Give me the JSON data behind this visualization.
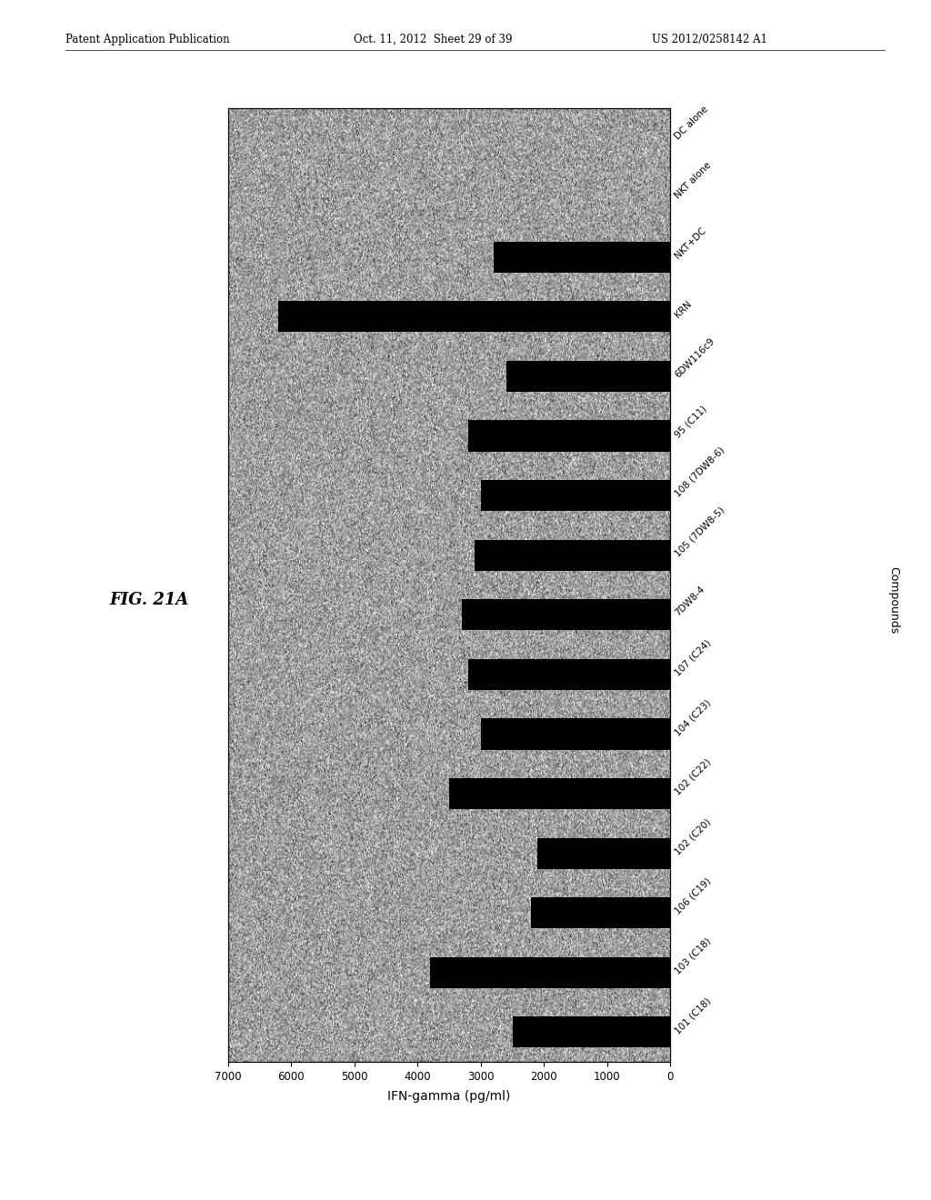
{
  "categories": [
    "DC alone",
    "NKT alone",
    "NKT+DC",
    "KRN",
    "6DW116c9",
    "95 (C11)",
    "108 (7DW8-6)",
    "105 (7DW8-5)",
    "7DW8-4",
    "107 (C24)",
    "104 (C23)",
    "102 (C22)",
    "102 (C20)",
    "106 (C19)",
    "103 (C18)",
    "101 (C18)"
  ],
  "values": [
    50,
    100,
    2800,
    6200,
    2600,
    3200,
    3000,
    3100,
    3300,
    3200,
    3000,
    3500,
    2100,
    2200,
    3800,
    2500
  ],
  "bar_color": "#000000",
  "xlim": [
    0,
    7000
  ],
  "xticks": [
    0,
    1000,
    2000,
    3000,
    4000,
    5000,
    6000,
    7000
  ],
  "header_left": "Patent Application Publication",
  "header_mid": "Oct. 11, 2012  Sheet 29 of 39",
  "header_right": "US 2012/0258142 A1",
  "xlabel": "IFN-gamma (pg/ml)",
  "ylabel": "Compounds",
  "fig_label": "FIG. 21A",
  "noise_mean": 0.62,
  "noise_std": 0.15
}
